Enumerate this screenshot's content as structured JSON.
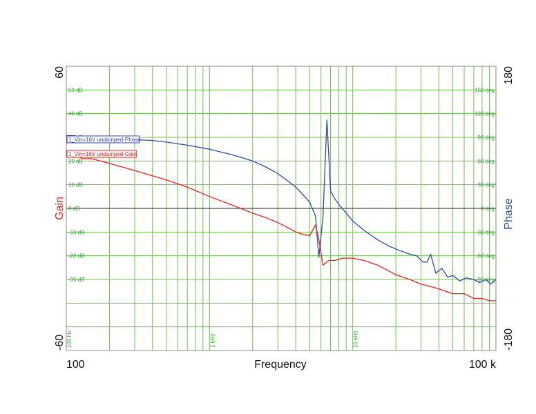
{
  "chart_data": {
    "type": "line",
    "xlabel": "Frequency",
    "x_scale": "log",
    "xlim": [
      100,
      100000
    ],
    "x_tick_labels_outer": {
      "min": "100",
      "max": "100 k"
    },
    "x_tick_labels_inner": [
      {
        "x": 100,
        "label": "100 Hz"
      },
      {
        "x": 1000,
        "label": "1 kHz"
      },
      {
        "x": 10000,
        "label": "10 kHz"
      }
    ],
    "y_left": {
      "label": "Gain",
      "color": "#e8211e",
      "range": [
        -60,
        60
      ],
      "range_labels": {
        "min": "-60",
        "max": "60"
      },
      "tick_labels": [
        {
          "y": 50,
          "label": "50 dB"
        },
        {
          "y": 40,
          "label": "40 dB"
        },
        {
          "y": 30,
          "label": "30 dB"
        },
        {
          "y": 20,
          "label": "20 dB"
        },
        {
          "y": 10,
          "label": "10 dB"
        },
        {
          "y": 0,
          "label": "0 dB"
        },
        {
          "y": -10,
          "label": "-10 dB"
        },
        {
          "y": -20,
          "label": "-20 dB"
        },
        {
          "y": -30,
          "label": "-30 dB"
        }
      ]
    },
    "y_right": {
      "label": "Phase",
      "color": "#2c4a9c",
      "range": [
        -180,
        180
      ],
      "range_labels": {
        "min": "-180",
        "max": "180"
      },
      "tick_labels": [
        {
          "y": 150,
          "label": "150 deg"
        },
        {
          "y": 120,
          "label": "120 deg"
        },
        {
          "y": 90,
          "label": "90 deg"
        },
        {
          "y": 60,
          "label": "60 deg"
        },
        {
          "y": 30,
          "label": "30 deg"
        },
        {
          "y": 0,
          "label": "0 deg"
        },
        {
          "y": -30,
          "label": "-30 deg"
        },
        {
          "y": -60,
          "label": "-60 deg"
        },
        {
          "y": -90,
          "label": "-90 deg"
        }
      ]
    },
    "grid": true,
    "series": [
      {
        "name": "1_Vin=16V undamped-Phase",
        "axis": "right",
        "color": "#2c4a9c",
        "x": [
          100,
          115,
          130,
          150,
          200,
          300,
          400,
          500,
          700,
          1000,
          1500,
          2000,
          2500,
          3000,
          3500,
          4000,
          4500,
          5000,
          5500,
          5800,
          6200,
          6600,
          7000,
          7500,
          8000,
          9000,
          10000,
          12000,
          15000,
          18000,
          21000,
          25000,
          28000,
          31000,
          33000,
          35000,
          38000,
          42000,
          46000,
          50000,
          56000,
          62000,
          70000,
          77000,
          85000,
          92000,
          100000
        ],
        "y": [
          92,
          92,
          90,
          89,
          89,
          87,
          86,
          84,
          80,
          75,
          67,
          60,
          52,
          44,
          35,
          27,
          17,
          8,
          -10,
          -62,
          -10,
          112,
          22,
          12,
          5,
          -6,
          -16,
          -28,
          -40,
          -48,
          -53,
          -58,
          -60,
          -68,
          -68,
          -58,
          -82,
          -76,
          -87,
          -85,
          -92,
          -88,
          -90,
          -94,
          -90,
          -96,
          -90
        ]
      },
      {
        "name": "1_Vin=16V undamped-Gain",
        "axis": "left",
        "color": "#e8211e",
        "x": [
          100,
          110,
          120,
          130,
          150,
          200,
          300,
          500,
          700,
          1000,
          1500,
          2000,
          2500,
          3000,
          3500,
          4000,
          4500,
          5000,
          5500,
          5800,
          6200,
          6800,
          7500,
          8500,
          10000,
          12000,
          15000,
          20000,
          25000,
          30000,
          35000,
          40000,
          50000,
          60000,
          70000,
          80000,
          90000,
          100000
        ],
        "y": [
          23,
          22,
          22,
          21,
          21,
          19,
          16,
          12,
          9,
          5,
          1,
          -2,
          -4,
          -6,
          -8,
          -10,
          -11,
          -11.5,
          -7,
          -13,
          -24,
          -22,
          -22,
          -21,
          -21,
          -22,
          -24,
          -28,
          -30,
          -32,
          -33,
          -34,
          -36,
          -36,
          -38,
          -38,
          -39,
          -39
        ]
      }
    ]
  }
}
